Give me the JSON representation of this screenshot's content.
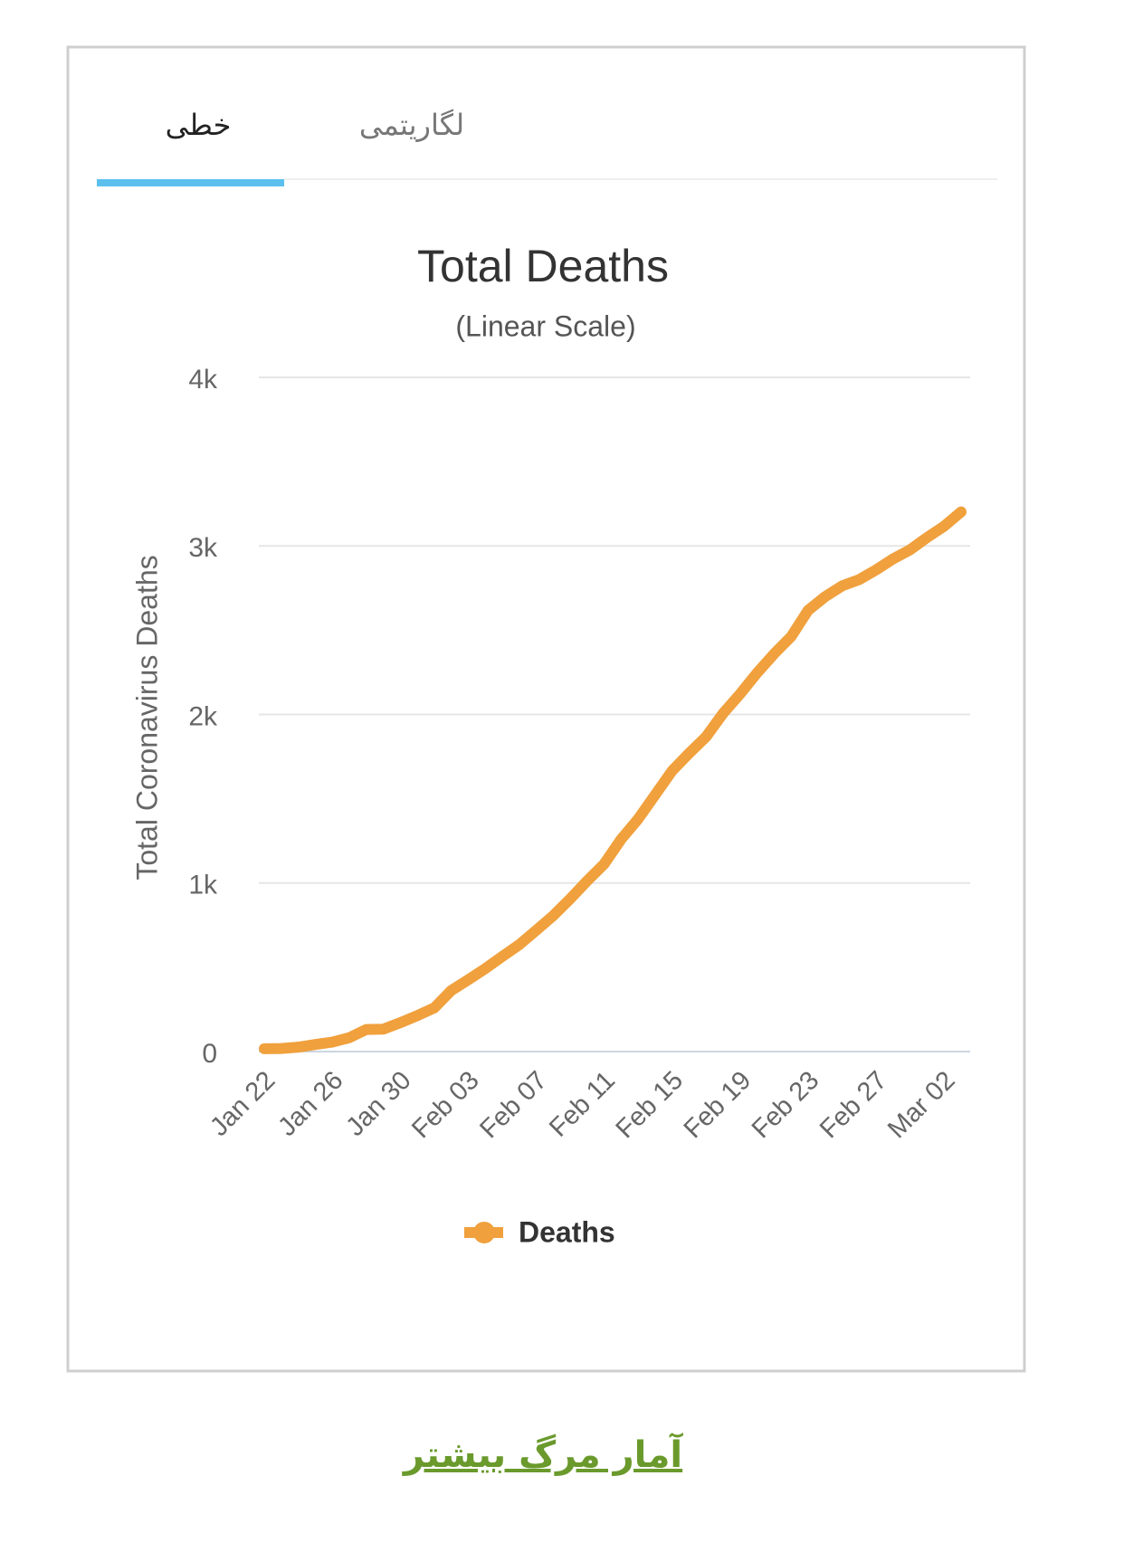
{
  "tabs": [
    "خطی",
    "لگاریتمی"
  ],
  "chart_data": {
    "type": "line",
    "title": "Total Deaths",
    "subtitle": "(Linear Scale)",
    "y_label": "Total Coronavirus Deaths",
    "categories": [
      "Jan 22",
      null,
      null,
      null,
      "Jan 26",
      null,
      null,
      null,
      "Jan 30",
      null,
      null,
      null,
      "Feb 03",
      null,
      null,
      null,
      "Feb 07",
      null,
      null,
      null,
      "Feb 11",
      null,
      null,
      null,
      "Feb 15",
      null,
      null,
      null,
      "Feb 19",
      null,
      null,
      null,
      "Feb 23",
      null,
      null,
      null,
      "Feb 27",
      null,
      null,
      null,
      "Mar 02",
      null
    ],
    "series": [
      {
        "name": "Deaths",
        "color": "#f0a03c",
        "values": [
          17,
          18,
          26,
          42,
          56,
          82,
          131,
          133,
          171,
          213,
          259,
          362,
          426,
          492,
          564,
          634,
          719,
          806,
          906,
          1013,
          1113,
          1260,
          1380,
          1523,
          1666,
          1770,
          1868,
          2007,
          2122,
          2247,
          2360,
          2462,
          2618,
          2699,
          2763,
          2800,
          2858,
          2923,
          2977,
          3050,
          3117,
          3202
        ]
      }
    ],
    "ylim": [
      0,
      4000
    ],
    "yticks": [
      0,
      {
        "value": 1000,
        "label": "1k"
      },
      {
        "value": 2000,
        "label": "2k"
      },
      {
        "value": 3000,
        "label": "3k"
      },
      {
        "value": 4000,
        "label": "4k"
      }
    ],
    "grid": true
  },
  "link": "آمار مرگ بیشتر"
}
